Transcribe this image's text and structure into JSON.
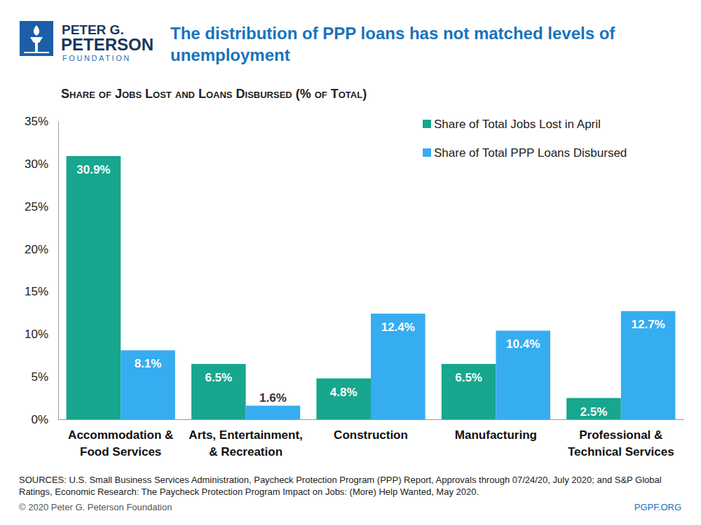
{
  "chart_data": {
    "type": "bar",
    "logo": [
      "PETER G.",
      "PETERSON",
      "FOUNDATION"
    ],
    "title": "The distribution of PPP loans has not matched levels of unemployment",
    "subtitle": "Share of Jobs Lost and Loans Disbursed (% of Total)",
    "categories": [
      "Accommodation & Food Services",
      "Arts, Entertainment, & Recreation",
      "Construction",
      "Manufacturing",
      "Professional & Technical Services"
    ],
    "series": [
      {
        "name": "Share of Total Jobs Lost in April",
        "color": "#17a68e",
        "values": [
          30.9,
          6.5,
          4.8,
          6.5,
          2.5
        ],
        "value_labels": [
          "30.9%",
          "6.5%",
          "4.8%",
          "6.5%",
          "2.5%"
        ]
      },
      {
        "name": "Share of Total PPP Loans Disbursed",
        "color": "#36adf0",
        "values": [
          8.1,
          1.6,
          12.4,
          10.4,
          12.7
        ],
        "value_labels": [
          "8.1%",
          "1.6%",
          "12.4%",
          "10.4%",
          "12.7%"
        ]
      }
    ],
    "ylim": [
      0,
      35
    ],
    "yticks": [
      {
        "value": 0,
        "label": "0%"
      },
      {
        "value": 5,
        "label": "5%"
      },
      {
        "value": 10,
        "label": "10%"
      },
      {
        "value": 15,
        "label": "15%"
      },
      {
        "value": 20,
        "label": "20%"
      },
      {
        "value": 25,
        "label": "25%"
      },
      {
        "value": 30,
        "label": "30%"
      },
      {
        "value": 35,
        "label": "35%"
      }
    ],
    "grid": false,
    "legend": "top-right",
    "data_labels": true,
    "source": "SOURCES: U.S. Small Business Services Administration, Paycheck Protection Program (PPP) Report, Approvals through 07/24/20, July 2020; and S&P Global Ratings, Economic Research: The Paycheck Protection Program Impact on Jobs: (More) Help Wanted, May 2020.",
    "copyright": "© 2020 Peter G. Peterson Foundation",
    "url": "PGPF.ORG"
  }
}
